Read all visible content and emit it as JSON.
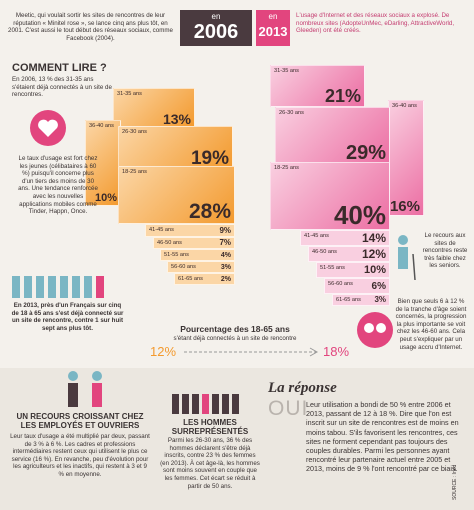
{
  "intro": "Meetic, qui voulait sortir les sites de rencontres de leur réputation « Minitel rose », se lance cinq ans plus tôt, en 2001. C'est aussi le tout début des réseaux sociaux, comme Facebook (2004).",
  "year_2006": {
    "prefix": "en",
    "year": "2006"
  },
  "year_2013": {
    "prefix": "en",
    "year": "2013"
  },
  "note_2013": "L'usage d'Internet et des réseaux sociaux a explosé. De nombreux sites (AdopteUnMec, eDarling, AttractiveWorld, Gleeden) ont été créés.",
  "how_to_read": {
    "title": "COMMENT LIRE ?",
    "text": "En 2006, 13 % des 31-35 ans s'étaient déjà connectés à un site de rencontres."
  },
  "groups_2006": [
    {
      "age": "31-35 ans",
      "value": "13%"
    },
    {
      "age": "36-40 ans",
      "value": "10%"
    },
    {
      "age": "26-30 ans",
      "value": "19%"
    },
    {
      "age": "18-25 ans",
      "value": "28%"
    },
    {
      "age": "41-45 ans",
      "value": "9%"
    },
    {
      "age": "46-50 ans",
      "value": "7%"
    },
    {
      "age": "51-55 ans",
      "value": "4%"
    },
    {
      "age": "56-60 ans",
      "value": "3%"
    },
    {
      "age": "61-65 ans",
      "value": "2%"
    }
  ],
  "groups_2013": [
    {
      "age": "31-35 ans",
      "value": "21%"
    },
    {
      "age": "36-40 ans",
      "value": "16%"
    },
    {
      "age": "26-30 ans",
      "value": "29%"
    },
    {
      "age": "18-25 ans",
      "value": "40%"
    },
    {
      "age": "41-45 ans",
      "value": "14%"
    },
    {
      "age": "46-50 ans",
      "value": "12%"
    },
    {
      "age": "51-55 ans",
      "value": "10%"
    },
    {
      "age": "56-60 ans",
      "value": "6%"
    },
    {
      "age": "61-65 ans",
      "value": "3%"
    }
  ],
  "young_note": "Le taux d'usage est fort chez les jeunes (célibataires à 60 %) puisqu'il concerne plus d'un tiers des moins de 30 ans. Une tendance renforcée avec les nouvelles applications mobiles comme Tinder, Happn, Once.",
  "france_note": "En 2013, près d'un Français sur cinq de 18 à 65 ans s'est déjà connecté sur un site de rencontre, contre 1 sur huit sept ans plus tôt.",
  "senior_note": "Le recours aux sites de rencontres reste très faible chez les seniors.",
  "progress_note": "Bien que seuls 6 à 12 % de la tranche d'âge soient concernés, la progression la plus importante se voit chez les 46-60 ans. Cela peut s'expliquer par un usage accru d'Internet.",
  "summary": {
    "title": "Pourcentage des 18-65 ans",
    "subtitle": "s'étant déjà connectés à un site de rencontre",
    "from": "12%",
    "to": "18%"
  },
  "workers": {
    "title": "UN RECOURS CROISSANT CHEZ LES EMPLOYÉS ET OUVRIERS",
    "text": "Leur taux d'usage a été multiplié par deux, passant de 3 % à 6 %. Les cadres et professions intermédiaires restent ceux qui utilisent le plus ce service (16 %). En revanche, peu d'évolution pour les agriculteurs et les inactifs, qui restent à 3 et 9 % en moyenne."
  },
  "men": {
    "title": "LES HOMMES SURREPRÉSENTÉS",
    "text": "Parmi les 26-30 ans, 36 % des hommes déclarent s'être déjà inscrits, contre 23 % des femmes (en 2013). À cet âge-là, les hommes sont moins souvent en couple que les femmes. Cet écart se réduit à partir de 50 ans."
  },
  "answer": {
    "title": "La réponse",
    "word": "OUI",
    "text": "Leur utilisation a bondi de 50 % entre 2006 et 2013, passant de 12 à 18 %. Dire que l'on est inscrit sur un site de rencontres est de moins en moins tabou. S'ils favorisent les rencontres, ces sites ne forment cependant pas toujours des couples durables. Parmi les personnes ayant rencontré leur partenaire actuel entre 2005 et 2013, moins de 9 % l'ont rencontré par ce biais."
  },
  "source": "SOURCE : Ined"
}
